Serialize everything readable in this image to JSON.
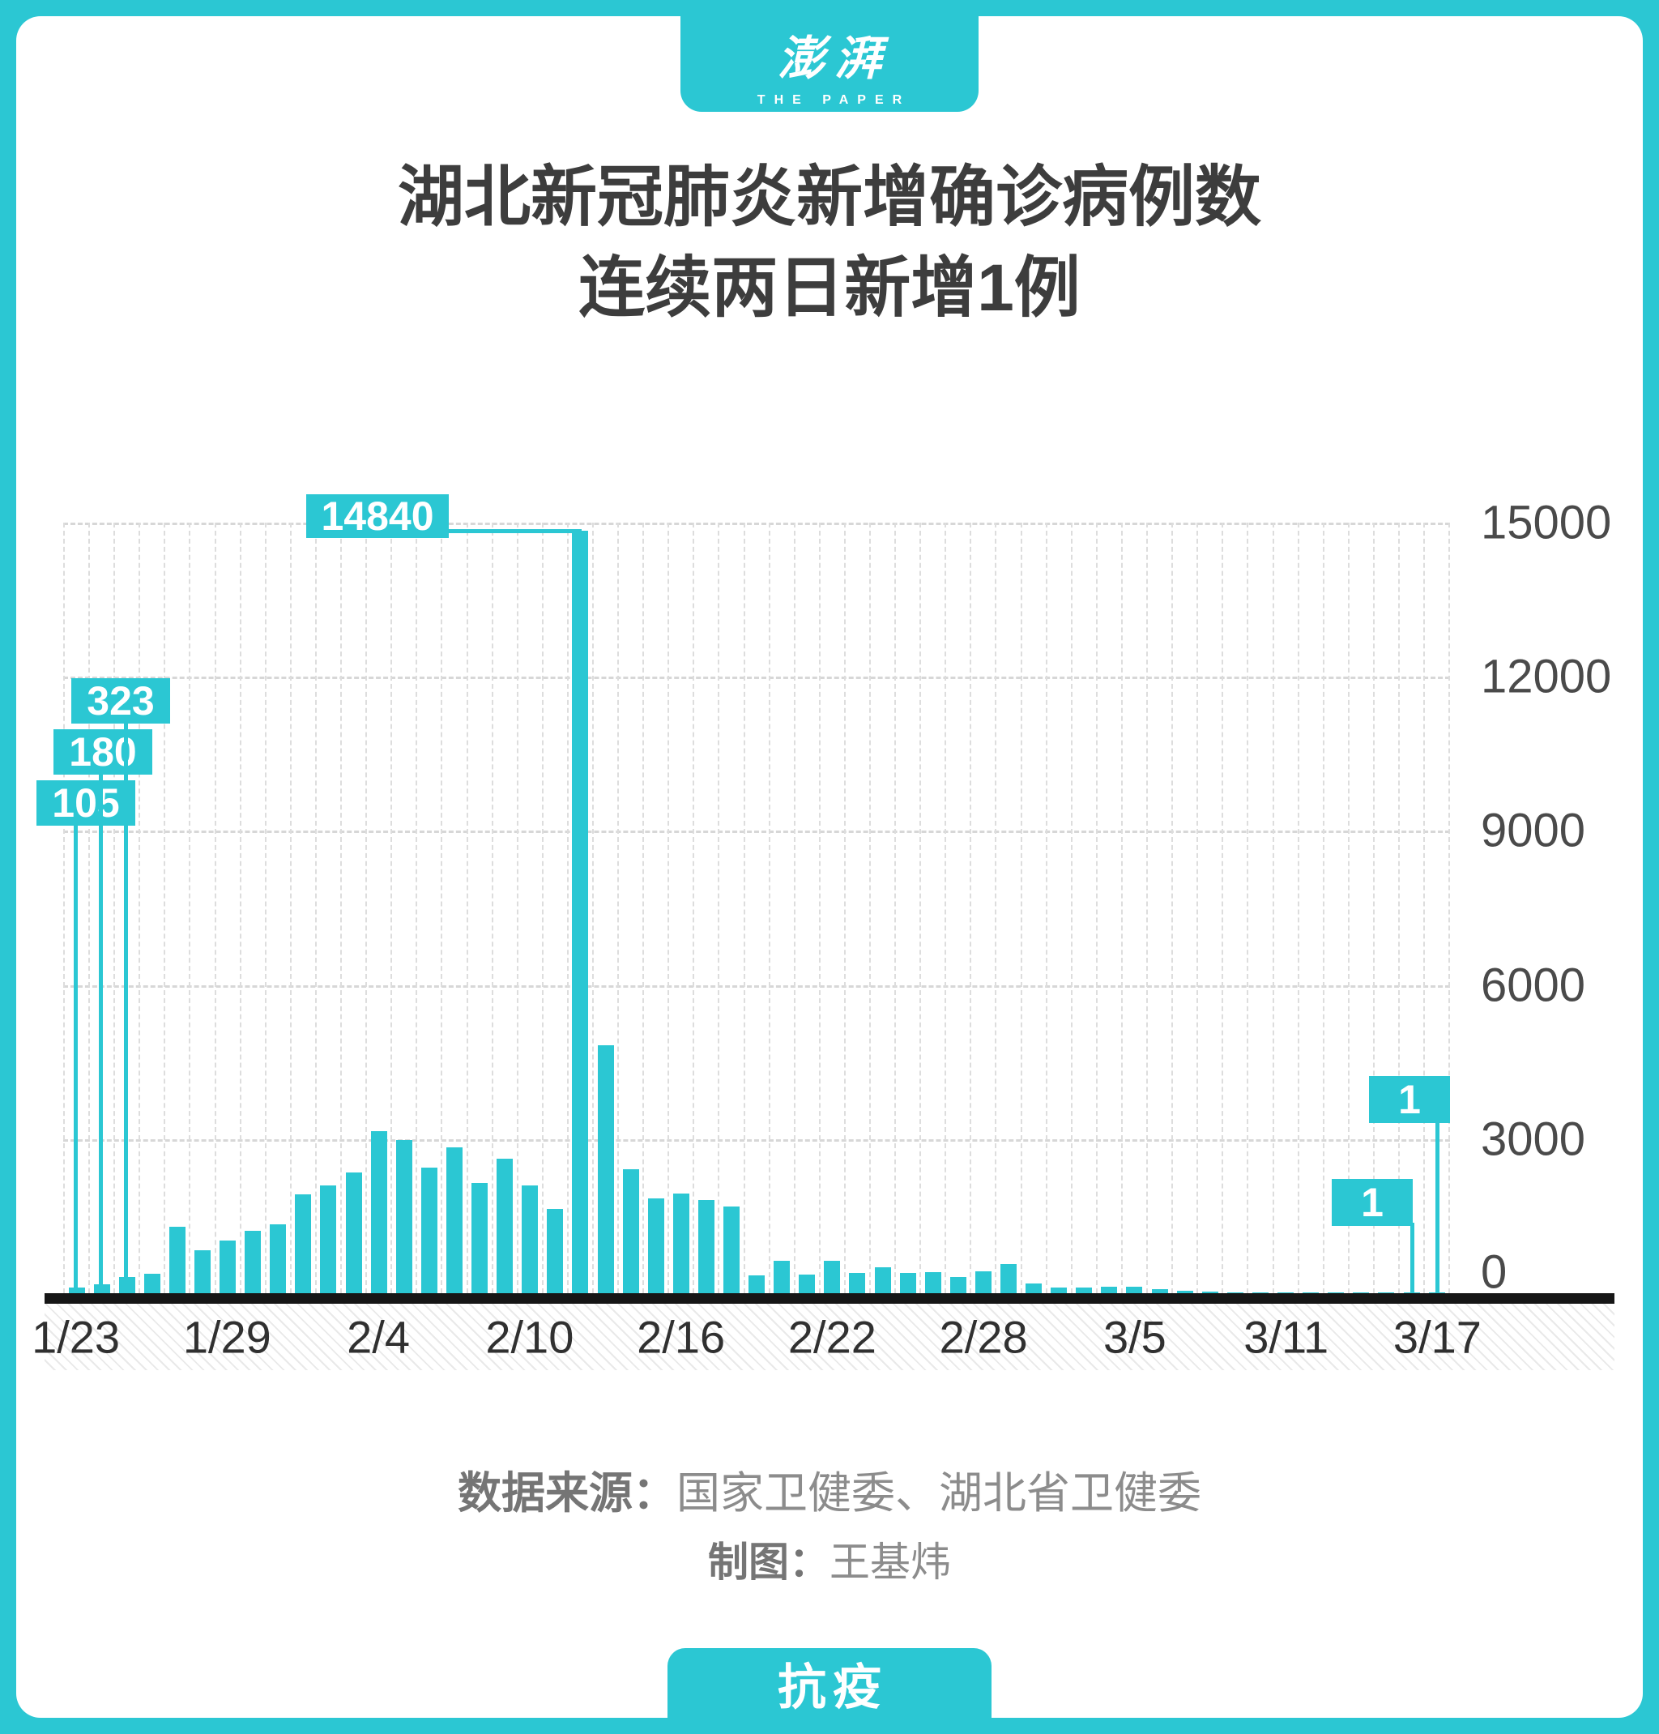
{
  "brand": {
    "logo_cn": "澎湃",
    "logo_en": "THE PAPER",
    "footer_tag": "抗疫"
  },
  "title": {
    "line1": "湖北新冠肺炎新增确诊病例数",
    "line2": "连续两日新增1例"
  },
  "source": {
    "label": "数据来源：",
    "value": "国家卫健委、湖北省卫健委",
    "credit_label": "制图：",
    "credit_value": "王基炜"
  },
  "colors": {
    "accent": "#2BC7D3",
    "title_text": "#3D3D3D",
    "axis_text": "#4A4A4A",
    "gridline": "#D7D7D7",
    "axis_line": "#161616"
  },
  "chart_data": {
    "type": "bar",
    "title": "湖北新冠肺炎新增确诊病例数 连续两日新增1例",
    "xlabel": "",
    "ylabel": "",
    "ylim": [
      0,
      15000
    ],
    "yticks": [
      0,
      3000,
      6000,
      9000,
      12000,
      15000
    ],
    "grid": "dashed",
    "legend": "none",
    "x": [
      "1/23",
      "1/24",
      "1/25",
      "1/26",
      "1/27",
      "1/28",
      "1/29",
      "1/30",
      "1/31",
      "2/1",
      "2/2",
      "2/3",
      "2/4",
      "2/5",
      "2/6",
      "2/7",
      "2/8",
      "2/9",
      "2/10",
      "2/11",
      "2/12",
      "2/13",
      "2/14",
      "2/15",
      "2/16",
      "2/17",
      "2/18",
      "2/19",
      "2/20",
      "2/21",
      "2/22",
      "2/23",
      "2/24",
      "2/25",
      "2/26",
      "2/27",
      "2/28",
      "2/29",
      "3/1",
      "3/2",
      "3/3",
      "3/4",
      "3/5",
      "3/6",
      "3/7",
      "3/8",
      "3/9",
      "3/10",
      "3/11",
      "3/12",
      "3/13",
      "3/14",
      "3/15",
      "3/16",
      "3/17"
    ],
    "values": [
      105,
      180,
      323,
      371,
      1291,
      840,
      1032,
      1220,
      1347,
      1921,
      2103,
      2345,
      3156,
      2987,
      2447,
      2841,
      2147,
      2618,
      2097,
      1638,
      14840,
      4823,
      2420,
      1843,
      1933,
      1807,
      1693,
      349,
      631,
      366,
      630,
      398,
      499,
      401,
      409,
      318,
      423,
      570,
      196,
      114,
      115,
      134,
      126,
      74,
      41,
      36,
      17,
      13,
      8,
      4,
      4,
      4,
      4,
      1,
      1
    ],
    "xtick_labels": [
      "1/23",
      "1/29",
      "2/4",
      "2/10",
      "2/16",
      "2/22",
      "2/28",
      "3/5",
      "3/11",
      "3/17"
    ],
    "xtick_indices": [
      0,
      6,
      12,
      18,
      24,
      30,
      36,
      42,
      48,
      54
    ],
    "annotations": [
      {
        "label": "105",
        "index": 0
      },
      {
        "label": "180",
        "index": 1
      },
      {
        "label": "323",
        "index": 2
      },
      {
        "label": "14840",
        "index": 20
      },
      {
        "label": "1",
        "index": 53
      },
      {
        "label": "1",
        "index": 54
      }
    ]
  }
}
